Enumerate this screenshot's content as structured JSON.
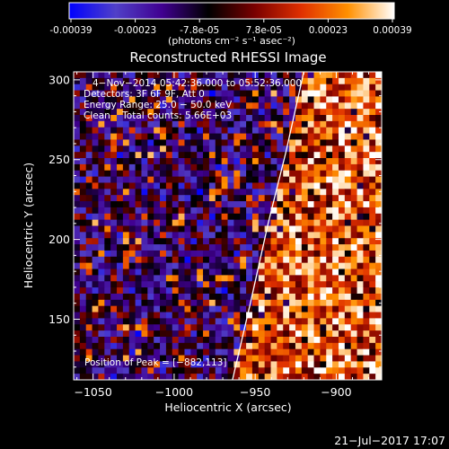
{
  "colorbar": {
    "tick_labels": [
      "-0.00039",
      "-0.00023",
      "-7.8e-05",
      "7.8e-05",
      "0.00023",
      "0.00039"
    ],
    "unit_label": "(photons cm⁻² s⁻¹ asec⁻²)",
    "stops": [
      "#0000ff",
      "#5040c8",
      "#400090",
      "#000000",
      "#7a0000",
      "#e03000",
      "#ff9000",
      "#ffffff"
    ]
  },
  "chart_data": {
    "type": "heatmap",
    "title": "Reconstructed RHESSI Image",
    "xlabel": "Heliocentric X (arcsec)",
    "ylabel": "Heliocentric Y (arcsec)",
    "xlim": [
      -1062,
      -872
    ],
    "ylim": [
      112,
      305
    ],
    "x_ticks": [
      -1050,
      -1000,
      -950,
      -900
    ],
    "x_tick_labels": [
      "−1050",
      "−1000",
      "−950",
      "−900"
    ],
    "y_ticks": [
      150,
      200,
      250,
      300
    ],
    "y_tick_labels": [
      "150",
      "200",
      "250",
      "300"
    ],
    "limb_line": [
      [
        -964,
        112
      ],
      [
        -953,
        160
      ],
      [
        -942,
        210
      ],
      [
        -931,
        255
      ],
      [
        -920,
        305
      ]
    ],
    "info": [
      "4−Nov−2014 05:42:36.000 to 05:52:36.000",
      "Detectors: 3F 6F 9F, Att 0",
      "Energy Range: 25.0 − 50.0 keV",
      "Clean    Total counts: 5.66E+03"
    ],
    "peak_label": "Position of Peak = [−882,113]",
    "peak": [
      -882,
      113
    ]
  },
  "footer": {
    "timestamp": "21−Jul−2017 17:07"
  }
}
